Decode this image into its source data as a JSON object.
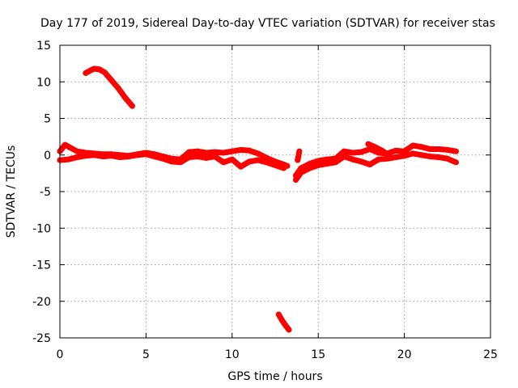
{
  "chart_data": {
    "type": "scatter",
    "title": "Day 177 of 2019, Sidereal Day-to-day VTEC variation (SDTVAR) for receiver stas",
    "xlabel": "GPS time / hours",
    "ylabel": "SDTVAR / TECUs",
    "xlim": [
      0,
      25
    ],
    "ylim": [
      -25,
      15
    ],
    "xticks": [
      0,
      5,
      10,
      15,
      20,
      25
    ],
    "yticks": [
      15,
      10,
      5,
      0,
      -5,
      -10,
      -15,
      -20,
      -25
    ],
    "grid": true,
    "color": "#ff0000",
    "series": [
      {
        "name": "SDTVAR band main",
        "x": [
          0.0,
          0.3,
          0.6,
          1.0,
          1.5,
          2.0,
          2.5,
          3.0,
          3.5,
          4.0,
          4.5,
          5.0,
          5.5,
          6.0,
          6.5,
          7.0,
          7.5,
          8.0,
          8.5,
          9.0,
          9.5,
          10.0,
          10.5,
          11.0,
          11.5,
          12.0,
          12.5,
          13.0,
          13.2
        ],
        "y": [
          0.5,
          1.4,
          1.0,
          0.5,
          0.3,
          0.2,
          0.1,
          0.1,
          0.0,
          -0.1,
          0.1,
          0.3,
          0.1,
          -0.2,
          -0.5,
          -0.6,
          0.4,
          0.5,
          0.3,
          0.4,
          0.3,
          0.5,
          0.7,
          0.6,
          0.2,
          -0.4,
          -0.9,
          -1.3,
          -1.5
        ]
      },
      {
        "name": "SDTVAR band low",
        "x": [
          0.0,
          0.5,
          1.0,
          1.5,
          2.0,
          2.5,
          3.0,
          3.5,
          4.0,
          4.5,
          5.0,
          5.5,
          6.0,
          6.5,
          7.0,
          7.5,
          8.0,
          8.5,
          9.0,
          9.5,
          10.0,
          10.5,
          11.0,
          11.5,
          12.0,
          12.5,
          13.0
        ],
        "y": [
          -0.7,
          -0.6,
          -0.3,
          -0.1,
          0.0,
          -0.2,
          -0.1,
          -0.3,
          -0.2,
          0.0,
          0.1,
          -0.2,
          -0.5,
          -0.9,
          -1.0,
          -0.3,
          -0.2,
          -0.4,
          -0.2,
          -1.0,
          -0.6,
          -1.6,
          -0.9,
          -0.7,
          -1.0,
          -1.4,
          -1.8
        ]
      },
      {
        "name": "SDTVAR band 2 main",
        "x": [
          13.7,
          14.0,
          14.5,
          15.0,
          15.5,
          16.0,
          16.5,
          17.0,
          17.5,
          18.0,
          18.5,
          19.0,
          19.5,
          20.0,
          20.5,
          21.0,
          21.5,
          22.0,
          22.5,
          23.0
        ],
        "y": [
          -2.8,
          -1.8,
          -1.2,
          -0.8,
          -0.6,
          -0.5,
          0.5,
          0.3,
          0.4,
          0.8,
          0.3,
          0.2,
          0.6,
          0.5,
          1.3,
          1.1,
          0.8,
          0.8,
          0.7,
          0.5
        ]
      },
      {
        "name": "SDTVAR band 2 low",
        "x": [
          13.7,
          14.0,
          14.5,
          15.0,
          15.5,
          16.0,
          16.5,
          17.0,
          17.5,
          18.0,
          18.5,
          19.0,
          19.5,
          20.0,
          20.5,
          21.0,
          21.5,
          22.0,
          22.5,
          23.0
        ],
        "y": [
          -3.4,
          -2.4,
          -1.8,
          -1.4,
          -1.2,
          -1.0,
          -0.2,
          -0.6,
          -0.9,
          -1.3,
          -0.6,
          -0.5,
          -0.3,
          -0.1,
          0.2,
          0.0,
          -0.2,
          -0.3,
          -0.5,
          -1.0
        ]
      },
      {
        "name": "SDTVAR band 2 spike",
        "x": [
          13.8,
          13.85,
          13.9
        ],
        "y": [
          -0.7,
          -0.2,
          0.5
        ]
      },
      {
        "name": "SDTVAR band 2 branch",
        "x": [
          17.9,
          18.3,
          18.7,
          19.0
        ],
        "y": [
          1.5,
          1.1,
          0.6,
          0.1
        ]
      },
      {
        "name": "SDTVAR arc high",
        "x": [
          1.5,
          1.8,
          2.0,
          2.3,
          2.6,
          3.0,
          3.4,
          3.8,
          4.2
        ],
        "y": [
          11.2,
          11.6,
          11.8,
          11.7,
          11.3,
          10.2,
          9.1,
          7.8,
          6.7
        ]
      },
      {
        "name": "SDTVAR arc low",
        "x": [
          12.7,
          12.9,
          13.1,
          13.3
        ],
        "y": [
          -21.8,
          -22.6,
          -23.3,
          -23.9
        ]
      }
    ]
  }
}
